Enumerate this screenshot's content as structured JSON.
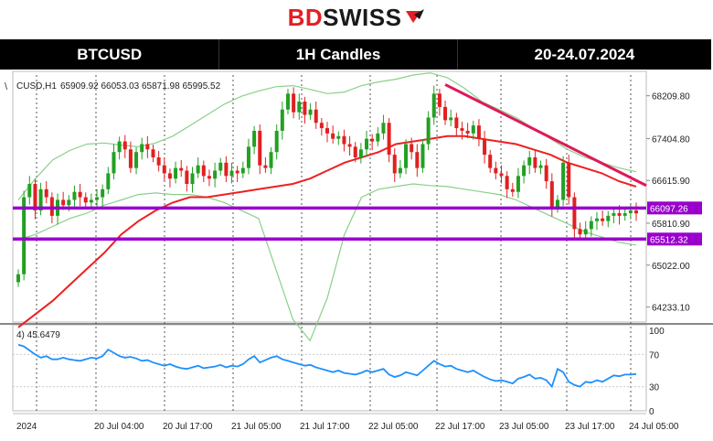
{
  "logo": {
    "part1": "BD",
    "part2": "SWISS"
  },
  "header": {
    "symbol": "BTCUSD",
    "timeframe": "1H Candles",
    "dates": "20-24.07.2024"
  },
  "info": {
    "symbol_tf": "CUSD,H1",
    "ohlc": "65909.92 66053.03 65871.98 65995.52"
  },
  "indicator_label": "4) 45.6479",
  "colors": {
    "bull": "#22a022",
    "bear": "#e02020",
    "ma": "#ee2020",
    "bands": "#8ad08a",
    "level": "#9900cc",
    "trend": "#e0185a",
    "rsi": "#1e90ff"
  },
  "chart_data": {
    "type": "candlestick",
    "x_ticks": [
      "2024",
      "20 Jul 04:00",
      "20 Jul 17:00",
      "21 Jul 05:00",
      "21 Jul 17:00",
      "22 Jul 05:00",
      "22 Jul 17:00",
      "23 Jul 05:00",
      "23 Jul 17:00",
      "24 Jul 05:00"
    ],
    "y_ticks": [
      "68209.80",
      "67404.80",
      "66615.90",
      "65810.90",
      "65022.00",
      "64233.10"
    ],
    "level_labels": [
      "66097.26",
      "65512.32"
    ],
    "levels": [
      66097.26,
      65512.32
    ],
    "ylim": [
      63950,
      68600
    ],
    "closes": [
      64850,
      66300,
      66550,
      66050,
      66450,
      66300,
      65950,
      66250,
      66150,
      66250,
      66400,
      66300,
      66200,
      66250,
      66300,
      66450,
      66750,
      67150,
      67350,
      67200,
      66850,
      67150,
      67300,
      67200,
      67050,
      66900,
      66750,
      66650,
      66850,
      66800,
      66550,
      66750,
      66900,
      66700,
      66650,
      66800,
      66950,
      66700,
      66800,
      66750,
      66850,
      67250,
      67550,
      66900,
      66850,
      67150,
      67550,
      67950,
      68250,
      67900,
      68100,
      67850,
      67950,
      67700,
      67600,
      67500,
      67400,
      67450,
      67300,
      67250,
      67050,
      67200,
      67400,
      67350,
      67500,
      67700,
      67100,
      66750,
      66850,
      67300,
      67150,
      66850,
      67300,
      67800,
      68250,
      68000,
      67750,
      67800,
      67600,
      67550,
      67500,
      67650,
      67400,
      67100,
      66850,
      66750,
      66700,
      66450,
      66400,
      66700,
      66900,
      67050,
      66850,
      66900,
      66600,
      66100,
      66250,
      66950,
      66300,
      65700,
      65600,
      65700,
      65850,
      65900,
      65850,
      65950,
      66000,
      65950,
      66000,
      66050,
      65995.52
    ],
    "bb_upper": [
      66250,
      66650,
      67000,
      67180,
      67300,
      67320,
      67280,
      67250,
      67320,
      67450,
      67650,
      67850,
      68050,
      68200,
      68300,
      68380,
      68400,
      68330,
      68250,
      68280,
      68400,
      68470,
      68520,
      68600,
      68640,
      68550,
      68350,
      68100,
      67950,
      67800,
      67600,
      67400,
      67200,
      67050,
      66950,
      66850,
      66780
    ],
    "bb_lower": [
      65500,
      65600,
      65750,
      65900,
      66000,
      66150,
      66250,
      66350,
      66380,
      66350,
      66350,
      66300,
      66200,
      66050,
      65900,
      64950,
      64000,
      63600,
      64400,
      65600,
      66300,
      66450,
      66500,
      66550,
      66520,
      66500,
      66450,
      66400,
      66350,
      66250,
      66100,
      65950,
      65800,
      65650,
      65550,
      65450,
      65400
    ],
    "ma": [
      63850,
      64100,
      64350,
      64650,
      64950,
      65250,
      65600,
      65850,
      66050,
      66200,
      66300,
      66300,
      66350,
      66400,
      66450,
      66500,
      66550,
      66650,
      66800,
      66950,
      67050,
      67150,
      67300,
      67350,
      67400,
      67450,
      67450,
      67400,
      67350,
      67300,
      67200,
      67100,
      66950,
      66850,
      66750,
      66600,
      66500
    ],
    "rsi": {
      "label": "4) 45.6479",
      "ylim": [
        0,
        100
      ],
      "ticks": [
        0,
        30,
        70,
        100
      ],
      "values": [
        82,
        80,
        75,
        70,
        66,
        68,
        64,
        64,
        66,
        64,
        63,
        62,
        64,
        66,
        65,
        68,
        76,
        72,
        68,
        66,
        67,
        65,
        62,
        63,
        60,
        58,
        56,
        58,
        55,
        53,
        52,
        54,
        56,
        53,
        54,
        55,
        57,
        54,
        56,
        55,
        58,
        64,
        68,
        60,
        63,
        66,
        68,
        64,
        62,
        60,
        58,
        56,
        57,
        54,
        52,
        50,
        48,
        50,
        47,
        46,
        45,
        47,
        50,
        48,
        50,
        52,
        45,
        42,
        44,
        48,
        46,
        44,
        50,
        56,
        62,
        58,
        55,
        56,
        52,
        50,
        48,
        50,
        46,
        42,
        39,
        37,
        38,
        36,
        34,
        40,
        42,
        45,
        40,
        41,
        38,
        30,
        52,
        48,
        36,
        32,
        30,
        36,
        35,
        38,
        36,
        40,
        44,
        43,
        45,
        45,
        45.6479
      ]
    }
  }
}
